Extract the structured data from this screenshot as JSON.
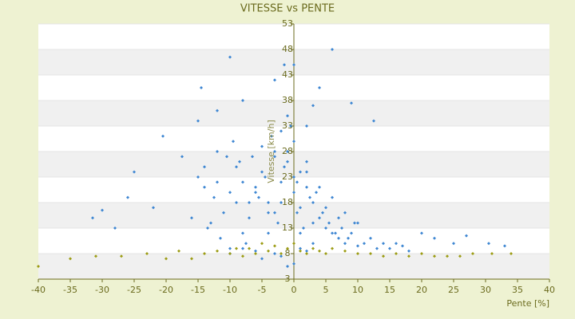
{
  "chart_data": {
    "type": "scatter",
    "title": "VITESSE vs PENTE",
    "xlabel": "Pente [%]",
    "ylabel": "Vitesse [km/h]",
    "xlim": [
      -40,
      40
    ],
    "xticks": [
      -40,
      -35,
      -30,
      -25,
      -20,
      -15,
      -10,
      -5,
      0,
      5,
      10,
      15,
      20,
      25,
      30,
      35,
      40
    ],
    "ylim": [
      3,
      53
    ],
    "yticks": [
      3,
      8,
      13,
      18,
      23,
      28,
      33,
      38,
      43,
      48,
      53
    ],
    "grid": true,
    "series": [
      {
        "color": "#3d86d2",
        "x": [
          -10,
          6,
          -14.5,
          4,
          9,
          -20.5,
          12.5,
          -25,
          -26,
          -31.5,
          -30,
          -22,
          -28,
          33,
          30.5,
          27,
          25,
          22,
          20,
          -17.5,
          -15,
          -12,
          -8,
          -3,
          0,
          -1.5,
          2,
          3,
          -6,
          -5,
          -4,
          -3,
          -2,
          -1,
          0,
          1,
          2,
          -7,
          -6.5,
          -5.5,
          -4.5,
          -3.5,
          -2.5,
          -1.5,
          -0.5,
          0.5,
          1.5,
          2.5,
          -8,
          -7,
          -5,
          -3,
          -1,
          1,
          3,
          -4,
          -2,
          0,
          2,
          -9,
          -6,
          -3,
          0,
          1,
          -2,
          -4,
          -1,
          0.5,
          3,
          4,
          5,
          6,
          7,
          8,
          9,
          10,
          11,
          12,
          13,
          14,
          15,
          16,
          17,
          18,
          4.5,
          5.5,
          6.5,
          7.5,
          8.5,
          9.5,
          3.5,
          5,
          7,
          2,
          4,
          6,
          8,
          10,
          -10,
          -11,
          -12,
          -13,
          -14,
          -9,
          -8,
          -10.5,
          -11.5,
          -12.5,
          -13.5,
          -15,
          -16,
          -9.5,
          -8.5,
          -7.5,
          -10,
          -12,
          -14,
          -6,
          -5,
          -3,
          -1,
          1,
          3,
          -8,
          -10,
          -2,
          0,
          2
        ],
        "values": [
          46.5,
          48,
          40.5,
          40.5,
          37.5,
          31,
          34,
          24,
          19,
          15,
          16.5,
          17,
          13,
          9.5,
          10,
          11.5,
          10,
          11,
          12,
          27,
          34,
          36,
          38,
          42,
          45,
          45,
          33,
          37,
          20,
          24,
          18,
          28,
          22,
          26,
          30,
          17,
          21,
          15,
          27,
          19,
          23,
          31,
          14,
          25,
          33,
          16,
          13,
          19,
          22,
          18,
          29,
          16,
          35,
          24,
          14,
          12,
          32,
          20,
          26,
          25,
          21,
          27,
          23,
          12,
          18,
          16,
          28,
          22,
          18,
          15,
          13,
          12,
          11,
          10,
          12,
          9.5,
          10,
          11,
          9,
          10,
          9,
          10,
          9.5,
          8.5,
          16,
          14,
          12,
          13,
          11,
          14,
          20,
          17,
          15,
          24,
          21,
          19,
          16,
          14,
          20,
          16,
          22,
          14,
          25,
          18,
          12,
          27,
          11,
          19,
          13,
          23,
          15,
          30,
          26,
          10,
          9,
          28,
          21,
          8.5,
          7,
          8,
          5.5,
          9,
          10,
          9,
          8,
          7.5,
          6,
          8.5
        ]
      },
      {
        "color": "#9c9c14",
        "x": [
          -40,
          -35,
          -31,
          -27,
          -23,
          -20,
          -18,
          -16,
          -14,
          -12,
          -10,
          -9,
          -8,
          -7,
          -6,
          -5,
          -4,
          -3,
          -2,
          -1,
          0,
          1,
          2,
          3,
          4,
          5,
          6,
          8,
          10,
          12,
          14,
          16,
          18,
          20,
          22,
          24,
          26,
          28,
          31,
          34
        ],
        "values": [
          5.5,
          7,
          7.5,
          7.5,
          8,
          7,
          8.5,
          7,
          8,
          8.5,
          8,
          9,
          7.5,
          9,
          8,
          10,
          8.5,
          9.5,
          8,
          9,
          10,
          8.5,
          8,
          9,
          8.5,
          8,
          9,
          8.5,
          8,
          8,
          7.5,
          8,
          7.5,
          8,
          7.5,
          7.5,
          7.5,
          8,
          8,
          8
        ]
      }
    ]
  }
}
